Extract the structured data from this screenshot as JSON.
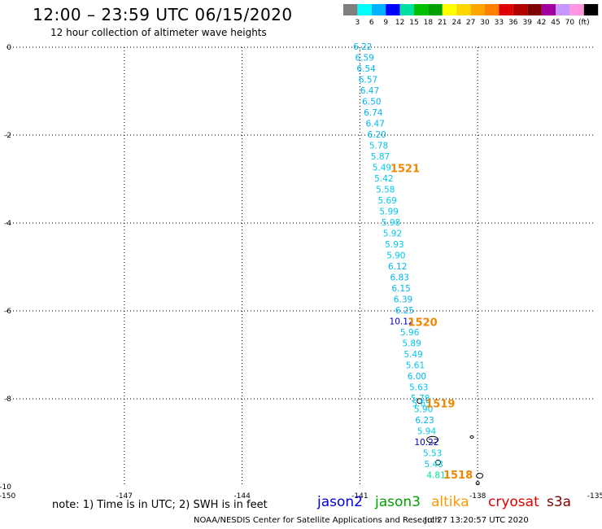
{
  "header": {
    "title": "12:00 – 23:59 UTC 06/15/2020",
    "subtitle": "12 hour collection of altimeter wave heights"
  },
  "colorbar": {
    "colors": [
      "#7f7f7f",
      "#00ffff",
      "#00b3ff",
      "#0000ff",
      "#00e0a0",
      "#00c000",
      "#00a000",
      "#ffff00",
      "#ffd700",
      "#ffa500",
      "#ff7f00",
      "#e00000",
      "#b00000",
      "#800000",
      "#a000a0",
      "#c896ff",
      "#ff96e0",
      "#000000"
    ],
    "labels": [
      "3",
      "6",
      "9",
      "12",
      "15",
      "18",
      "21",
      "24",
      "27",
      "30",
      "33",
      "36",
      "39",
      "42",
      "45",
      "70",
      "(ft)"
    ]
  },
  "chart_data": {
    "type": "scatter",
    "title": "12:00 – 23:59 UTC 06/15/2020",
    "subtitle": "12 hour collection of altimeter wave heights",
    "xlim": [
      -150,
      -135
    ],
    "ylim": [
      -10,
      0
    ],
    "x_ticks": [
      "-150",
      "-147",
      "-144",
      "-141",
      "-138",
      "-135"
    ],
    "y_ticks": [
      "0",
      "-2",
      "-4",
      "-6",
      "-8",
      "-10"
    ],
    "grid": true,
    "labels": [
      {
        "text": "6.22",
        "lon": -140.93,
        "lat": 0.0,
        "color": "#00b4f0"
      },
      {
        "text": "6.59",
        "lon": -140.88,
        "lat": -0.25,
        "color": "#00b4f0"
      },
      {
        "text": "6.54",
        "lon": -140.84,
        "lat": -0.5,
        "color": "#00b4f0"
      },
      {
        "text": "6.57",
        "lon": -140.79,
        "lat": -0.75,
        "color": "#00b4f0"
      },
      {
        "text": "6.47",
        "lon": -140.75,
        "lat": -1.0,
        "color": "#00b4f0"
      },
      {
        "text": "6.50",
        "lon": -140.7,
        "lat": -1.25,
        "color": "#00b4f0"
      },
      {
        "text": "6.74",
        "lon": -140.66,
        "lat": -1.5,
        "color": "#00b4f0"
      },
      {
        "text": "6.47",
        "lon": -140.61,
        "lat": -1.75,
        "color": "#00b4f0"
      },
      {
        "text": "6.20",
        "lon": -140.57,
        "lat": -2.0,
        "color": "#00b4f0"
      },
      {
        "text": "5.78",
        "lon": -140.52,
        "lat": -2.25,
        "color": "#00c8e8"
      },
      {
        "text": "5.87",
        "lon": -140.48,
        "lat": -2.5,
        "color": "#00c8e8"
      },
      {
        "text": "5.49",
        "lon": -140.44,
        "lat": -2.75,
        "color": "#00c8e8"
      },
      {
        "text": "5.42",
        "lon": -140.39,
        "lat": -3.0,
        "color": "#00c8e8"
      },
      {
        "text": "5.58",
        "lon": -140.35,
        "lat": -3.25,
        "color": "#00c8e8"
      },
      {
        "text": "5.69",
        "lon": -140.3,
        "lat": -3.5,
        "color": "#00c8e8"
      },
      {
        "text": "5.99",
        "lon": -140.26,
        "lat": -3.75,
        "color": "#00c8e8"
      },
      {
        "text": "5.98",
        "lon": -140.21,
        "lat": -4.0,
        "color": "#00c8e8"
      },
      {
        "text": "5.92",
        "lon": -140.17,
        "lat": -4.25,
        "color": "#00c8e8"
      },
      {
        "text": "5.93",
        "lon": -140.12,
        "lat": -4.5,
        "color": "#00c8e8"
      },
      {
        "text": "5.90",
        "lon": -140.08,
        "lat": -4.75,
        "color": "#00c8e8"
      },
      {
        "text": "6.12",
        "lon": -140.04,
        "lat": -5.0,
        "color": "#00b4f0"
      },
      {
        "text": "6.83",
        "lon": -139.99,
        "lat": -5.25,
        "color": "#00b4f0"
      },
      {
        "text": "6.15",
        "lon": -139.95,
        "lat": -5.5,
        "color": "#00b4f0"
      },
      {
        "text": "6.39",
        "lon": -139.9,
        "lat": -5.75,
        "color": "#00b4f0"
      },
      {
        "text": "6.25",
        "lon": -139.86,
        "lat": -6.0,
        "color": "#00b4f0"
      },
      {
        "text": "10.12",
        "lon": -139.94,
        "lat": -6.25,
        "color": "#0000c8"
      },
      {
        "text": "5.96",
        "lon": -139.73,
        "lat": -6.5,
        "color": "#00c8e8"
      },
      {
        "text": "5.89",
        "lon": -139.68,
        "lat": -6.75,
        "color": "#00c8e8"
      },
      {
        "text": "5.49",
        "lon": -139.64,
        "lat": -7.0,
        "color": "#00c8e8"
      },
      {
        "text": "5.61",
        "lon": -139.59,
        "lat": -7.25,
        "color": "#00c8e8"
      },
      {
        "text": "6.00",
        "lon": -139.55,
        "lat": -7.5,
        "color": "#00b4f0"
      },
      {
        "text": "5.63",
        "lon": -139.5,
        "lat": -7.75,
        "color": "#00c8e8"
      },
      {
        "text": "5.78",
        "lon": -139.46,
        "lat": -8.0,
        "color": "#00c8e8"
      },
      {
        "text": "5.65",
        "lon": -139.43,
        "lat": -8.12,
        "color": "#00c8e8"
      },
      {
        "text": "5.90",
        "lon": -139.38,
        "lat": -8.25,
        "color": "#00c8e8"
      },
      {
        "text": "6.23",
        "lon": -139.35,
        "lat": -8.5,
        "color": "#00b4f0"
      },
      {
        "text": "5.94",
        "lon": -139.3,
        "lat": -8.75,
        "color": "#00c8e8"
      },
      {
        "text": "10.22",
        "lon": -139.3,
        "lat": -9.0,
        "color": "#0000c8"
      },
      {
        "text": "5.53",
        "lon": -139.15,
        "lat": -9.25,
        "color": "#00c8e8"
      },
      {
        "text": "5.43",
        "lon": -139.12,
        "lat": -9.5,
        "color": "#00c8e8"
      },
      {
        "text": "4.81",
        "lon": -139.06,
        "lat": -9.75,
        "color": "#00e0a0"
      }
    ],
    "pass_labels": [
      {
        "text": "1521",
        "lon": -139.85,
        "lat": -2.75,
        "color": "#ee8800"
      },
      {
        "text": "1520",
        "lon": -139.4,
        "lat": -6.25,
        "color": "#ee8800"
      },
      {
        "text": "1519",
        "lon": -138.95,
        "lat": -8.1,
        "color": "#ee8800"
      },
      {
        "text": "1518",
        "lon": -138.5,
        "lat": -9.72,
        "color": "#ee8800"
      }
    ]
  },
  "legend": {
    "note": "note:  1)  Time is in UTC;  2)  SWH is in feet",
    "satellites": [
      {
        "name": "jason2",
        "color": "#0000e0"
      },
      {
        "name": "jason3",
        "color": "#00a000"
      },
      {
        "name": "altika",
        "color": "#ff9900"
      },
      {
        "name": "cryosat",
        "color": "#e00000"
      },
      {
        "name": "s3a",
        "color": "#800000"
      }
    ]
  },
  "footer": {
    "credit": "NOAA/NESDIS Center for Satellite Applications and Research",
    "timestamp": "Jul 27 13:20:57 UTC 2020"
  }
}
